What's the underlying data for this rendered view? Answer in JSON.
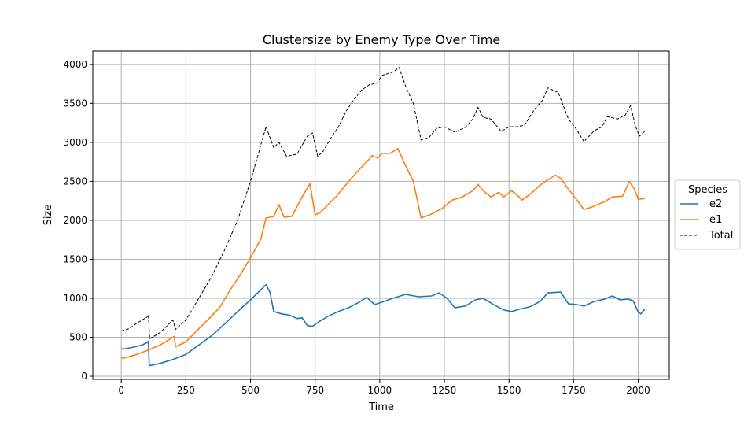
{
  "chart_data": {
    "type": "line",
    "title": "Clustersize by Enemy Type Over Time",
    "xlabel": "Time",
    "ylabel": "Size",
    "xlim": [
      -110,
      2120
    ],
    "ylim": [
      -40,
      4170
    ],
    "xticks": [
      0,
      250,
      500,
      750,
      1000,
      1250,
      1500,
      1750,
      2000
    ],
    "yticks": [
      0,
      500,
      1000,
      1500,
      2000,
      2500,
      3000,
      3500,
      4000
    ],
    "grid": true,
    "legend": {
      "title": "Species",
      "placement": "outside-right"
    },
    "series": [
      {
        "name": "e2",
        "color": "#1f77b4",
        "style": "solid",
        "points": [
          [
            0,
            350
          ],
          [
            20,
            355
          ],
          [
            50,
            375
          ],
          [
            80,
            400
          ],
          [
            100,
            430
          ],
          [
            105,
            450
          ],
          [
            108,
            135
          ],
          [
            150,
            165
          ],
          [
            200,
            215
          ],
          [
            250,
            280
          ],
          [
            300,
            400
          ],
          [
            350,
            520
          ],
          [
            400,
            670
          ],
          [
            450,
            830
          ],
          [
            500,
            980
          ],
          [
            540,
            1110
          ],
          [
            560,
            1175
          ],
          [
            575,
            1080
          ],
          [
            590,
            830
          ],
          [
            620,
            800
          ],
          [
            650,
            785
          ],
          [
            680,
            740
          ],
          [
            700,
            750
          ],
          [
            720,
            650
          ],
          [
            740,
            640
          ],
          [
            760,
            690
          ],
          [
            800,
            770
          ],
          [
            840,
            830
          ],
          [
            880,
            880
          ],
          [
            920,
            950
          ],
          [
            950,
            1010
          ],
          [
            980,
            920
          ],
          [
            1000,
            940
          ],
          [
            1050,
            1000
          ],
          [
            1100,
            1050
          ],
          [
            1150,
            1020
          ],
          [
            1200,
            1030
          ],
          [
            1230,
            1070
          ],
          [
            1260,
            1000
          ],
          [
            1290,
            880
          ],
          [
            1330,
            900
          ],
          [
            1370,
            980
          ],
          [
            1400,
            1000
          ],
          [
            1440,
            920
          ],
          [
            1480,
            850
          ],
          [
            1510,
            830
          ],
          [
            1540,
            860
          ],
          [
            1580,
            890
          ],
          [
            1620,
            960
          ],
          [
            1650,
            1070
          ],
          [
            1700,
            1080
          ],
          [
            1730,
            930
          ],
          [
            1760,
            920
          ],
          [
            1790,
            900
          ],
          [
            1830,
            960
          ],
          [
            1870,
            990
          ],
          [
            1900,
            1030
          ],
          [
            1930,
            980
          ],
          [
            1960,
            990
          ],
          [
            1980,
            970
          ],
          [
            2000,
            820
          ],
          [
            2010,
            800
          ],
          [
            2025,
            860
          ]
        ]
      },
      {
        "name": "e1",
        "color": "#ff7f0e",
        "style": "solid",
        "points": [
          [
            0,
            230
          ],
          [
            30,
            250
          ],
          [
            60,
            280
          ],
          [
            100,
            330
          ],
          [
            150,
            400
          ],
          [
            200,
            500
          ],
          [
            205,
            510
          ],
          [
            210,
            380
          ],
          [
            250,
            440
          ],
          [
            300,
            610
          ],
          [
            340,
            740
          ],
          [
            380,
            880
          ],
          [
            420,
            1100
          ],
          [
            460,
            1300
          ],
          [
            500,
            1520
          ],
          [
            540,
            1760
          ],
          [
            560,
            2030
          ],
          [
            590,
            2050
          ],
          [
            610,
            2200
          ],
          [
            630,
            2040
          ],
          [
            660,
            2050
          ],
          [
            700,
            2300
          ],
          [
            730,
            2470
          ],
          [
            750,
            2070
          ],
          [
            770,
            2100
          ],
          [
            800,
            2200
          ],
          [
            830,
            2300
          ],
          [
            880,
            2500
          ],
          [
            920,
            2650
          ],
          [
            950,
            2750
          ],
          [
            970,
            2830
          ],
          [
            990,
            2800
          ],
          [
            1010,
            2860
          ],
          [
            1040,
            2860
          ],
          [
            1070,
            2920
          ],
          [
            1100,
            2700
          ],
          [
            1130,
            2500
          ],
          [
            1160,
            2030
          ],
          [
            1200,
            2080
          ],
          [
            1240,
            2150
          ],
          [
            1280,
            2260
          ],
          [
            1320,
            2300
          ],
          [
            1360,
            2380
          ],
          [
            1380,
            2460
          ],
          [
            1400,
            2380
          ],
          [
            1430,
            2300
          ],
          [
            1460,
            2360
          ],
          [
            1480,
            2300
          ],
          [
            1510,
            2380
          ],
          [
            1530,
            2330
          ],
          [
            1550,
            2260
          ],
          [
            1580,
            2330
          ],
          [
            1620,
            2450
          ],
          [
            1650,
            2520
          ],
          [
            1680,
            2580
          ],
          [
            1700,
            2540
          ],
          [
            1730,
            2400
          ],
          [
            1760,
            2270
          ],
          [
            1790,
            2140
          ],
          [
            1820,
            2170
          ],
          [
            1840,
            2200
          ],
          [
            1870,
            2240
          ],
          [
            1900,
            2300
          ],
          [
            1940,
            2310
          ],
          [
            1965,
            2500
          ],
          [
            1985,
            2400
          ],
          [
            2000,
            2270
          ],
          [
            2025,
            2280
          ]
        ]
      },
      {
        "name": "Total",
        "color": "#000000",
        "style": "dashed",
        "points": [
          [
            0,
            580
          ],
          [
            30,
            610
          ],
          [
            60,
            680
          ],
          [
            100,
            760
          ],
          [
            105,
            790
          ],
          [
            110,
            480
          ],
          [
            150,
            560
          ],
          [
            200,
            720
          ],
          [
            210,
            600
          ],
          [
            250,
            720
          ],
          [
            300,
            1000
          ],
          [
            350,
            1280
          ],
          [
            400,
            1620
          ],
          [
            450,
            2000
          ],
          [
            500,
            2500
          ],
          [
            530,
            2850
          ],
          [
            560,
            3200
          ],
          [
            590,
            2930
          ],
          [
            610,
            3000
          ],
          [
            640,
            2820
          ],
          [
            680,
            2850
          ],
          [
            720,
            3080
          ],
          [
            740,
            3120
          ],
          [
            760,
            2820
          ],
          [
            780,
            2880
          ],
          [
            810,
            3050
          ],
          [
            840,
            3200
          ],
          [
            870,
            3400
          ],
          [
            900,
            3550
          ],
          [
            930,
            3670
          ],
          [
            960,
            3740
          ],
          [
            990,
            3760
          ],
          [
            1010,
            3860
          ],
          [
            1050,
            3900
          ],
          [
            1075,
            3960
          ],
          [
            1100,
            3720
          ],
          [
            1130,
            3500
          ],
          [
            1160,
            3030
          ],
          [
            1190,
            3060
          ],
          [
            1220,
            3180
          ],
          [
            1250,
            3200
          ],
          [
            1290,
            3130
          ],
          [
            1330,
            3190
          ],
          [
            1360,
            3300
          ],
          [
            1380,
            3450
          ],
          [
            1400,
            3320
          ],
          [
            1430,
            3300
          ],
          [
            1470,
            3140
          ],
          [
            1500,
            3200
          ],
          [
            1530,
            3200
          ],
          [
            1560,
            3220
          ],
          [
            1600,
            3430
          ],
          [
            1630,
            3540
          ],
          [
            1650,
            3700
          ],
          [
            1690,
            3640
          ],
          [
            1730,
            3300
          ],
          [
            1760,
            3170
          ],
          [
            1790,
            3010
          ],
          [
            1830,
            3150
          ],
          [
            1860,
            3200
          ],
          [
            1880,
            3330
          ],
          [
            1920,
            3300
          ],
          [
            1950,
            3350
          ],
          [
            1970,
            3470
          ],
          [
            1990,
            3200
          ],
          [
            2005,
            3080
          ],
          [
            2025,
            3140
          ]
        ]
      }
    ]
  }
}
